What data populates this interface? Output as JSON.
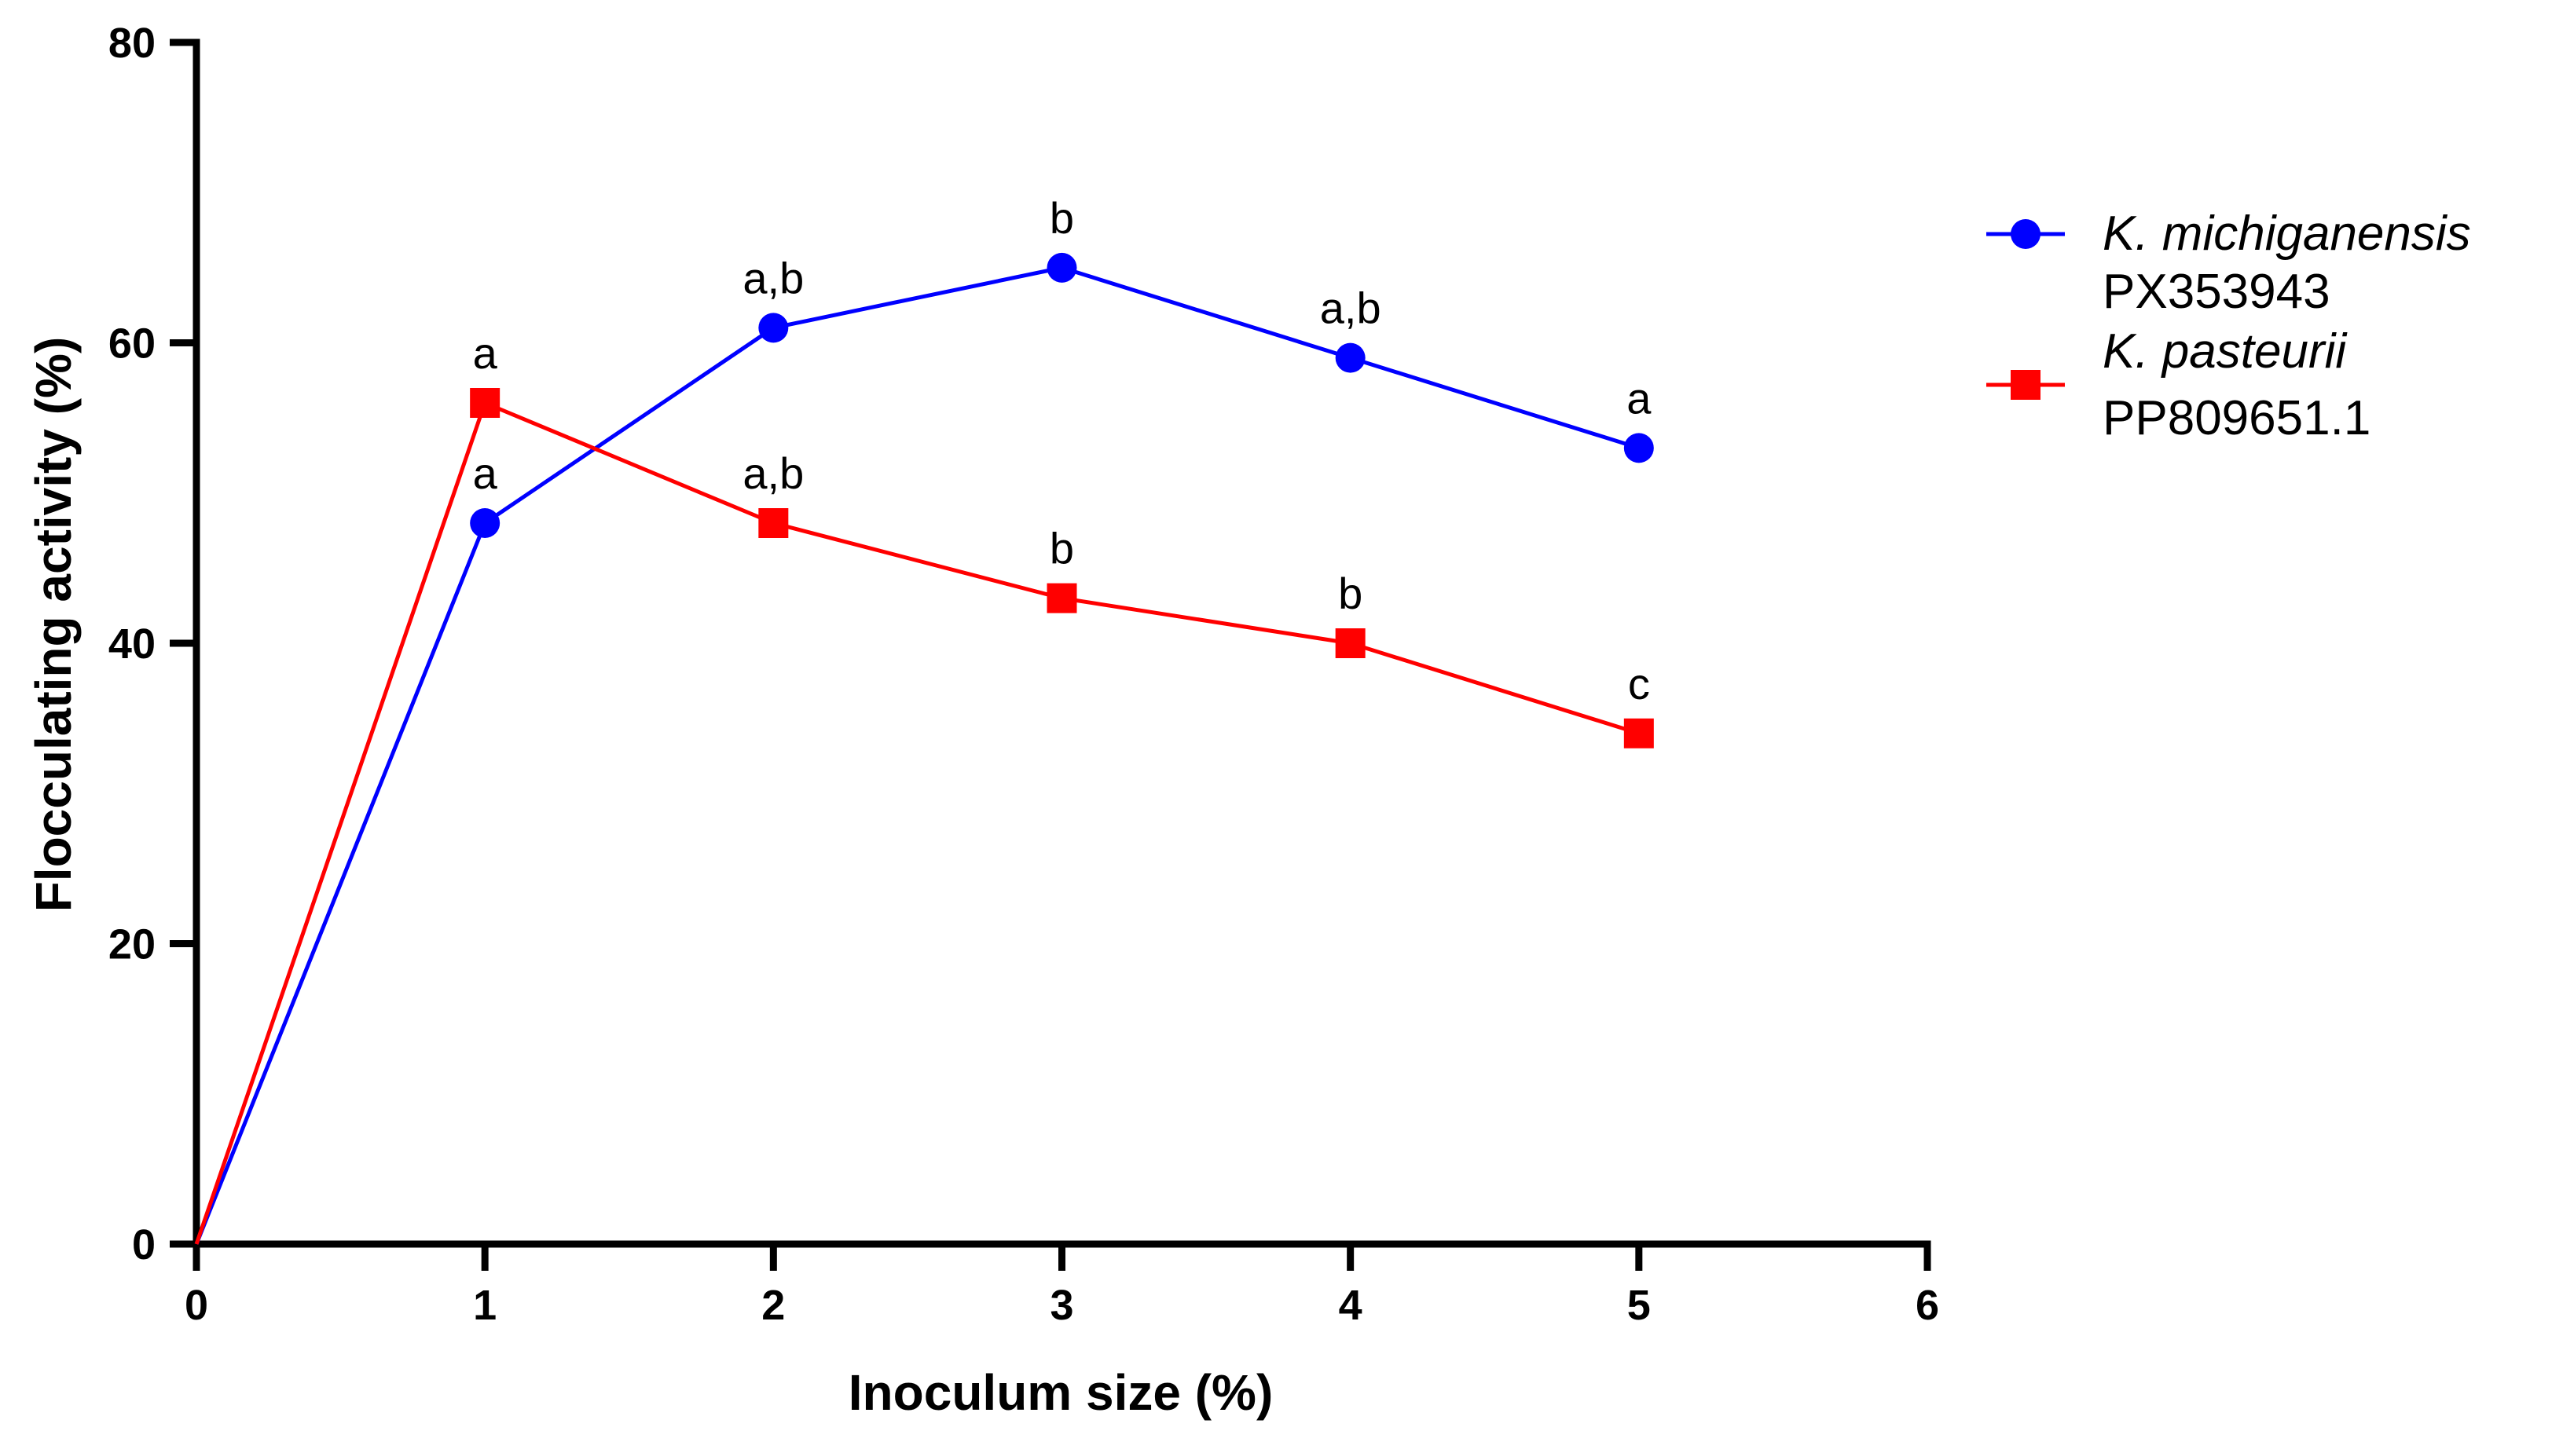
{
  "chart_data": {
    "type": "line",
    "title": "",
    "xlabel": "Inoculum size  (%)",
    "ylabel": "Flocculating activity (%)",
    "xlim": [
      0,
      6
    ],
    "ylim": [
      0,
      80
    ],
    "xticks": [
      0,
      1,
      2,
      3,
      4,
      5,
      6
    ],
    "yticks": [
      0,
      20,
      40,
      60,
      80
    ],
    "legend_position": "right",
    "series": [
      {
        "name": "K. michiganensis PX353943",
        "species": "K. michiganensis",
        "accession": "PX353943",
        "color": "#0000ff",
        "marker": "circle",
        "x": [
          0,
          1,
          2,
          3,
          4,
          5
        ],
        "values": [
          0,
          48,
          61,
          65,
          59,
          53
        ],
        "labels": [
          "",
          "a",
          "a,b",
          "b",
          "a,b",
          "a"
        ]
      },
      {
        "name": "K. pasteurii PP809651.1",
        "species": "K. pasteurii",
        "accession": "PP809651.1",
        "color": "#ff0000",
        "marker": "square",
        "x": [
          0,
          1,
          2,
          3,
          4,
          5
        ],
        "values": [
          0,
          56,
          48,
          43,
          40,
          34
        ],
        "labels": [
          "",
          "a",
          "a,b",
          "b",
          "b",
          "c"
        ]
      }
    ]
  }
}
